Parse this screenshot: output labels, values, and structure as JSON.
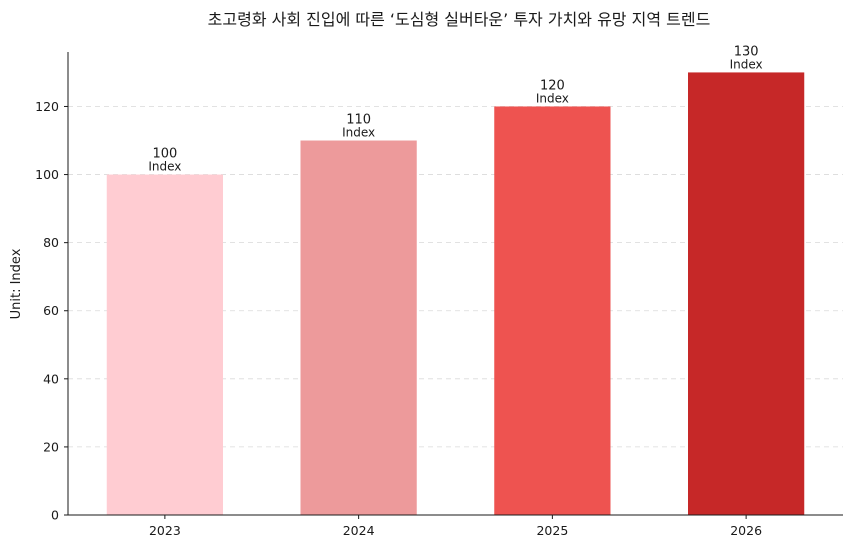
{
  "chart_data": {
    "type": "bar",
    "title": "초고령화 사회 진입에 따른 ‘도심형 실버타운’ 투자 가치와 유망 지역 트렌드",
    "xlabel": "",
    "ylabel": "Unit: Index",
    "categories": [
      "2023",
      "2024",
      "2025",
      "2026"
    ],
    "values": [
      100,
      110,
      120,
      130
    ],
    "value_unit": "Index",
    "colors": [
      "#ffccd2",
      "#ed9a9b",
      "#ee5350",
      "#c62828"
    ],
    "ylim": [
      0,
      136
    ],
    "yticks": [
      0,
      20,
      40,
      60,
      80,
      100,
      120
    ],
    "grid": true,
    "legend": "none"
  }
}
